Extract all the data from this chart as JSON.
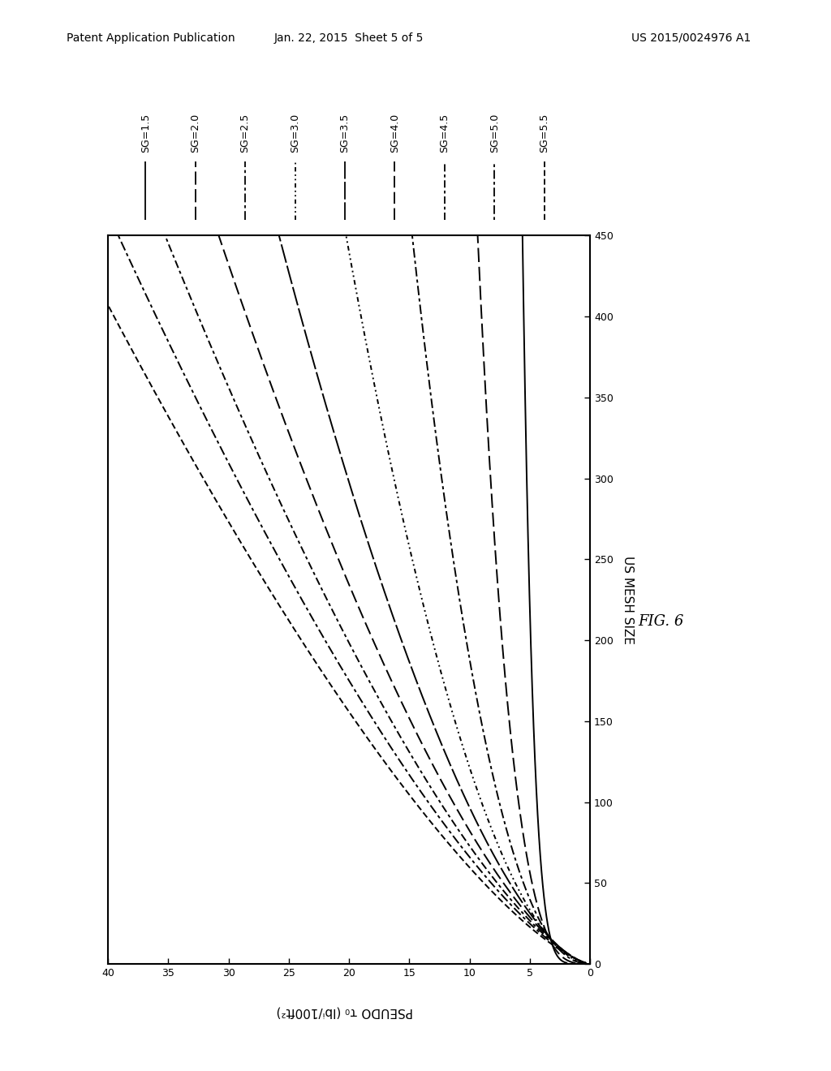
{
  "title_header": "Patent Application Publication",
  "date_header": "Jan. 22, 2015  Sheet 5 of 5",
  "patent_header": "US 2015/0024976 A1",
  "fig_label": "FIG. 6",
  "xlabel": "PSEUDO τ₀ (lbf/100ft²)",
  "ylabel": "US MESH SIZE",
  "x_min": 0,
  "x_max": 40,
  "y_min": 0,
  "y_max": 450,
  "x_ticks": [
    0,
    5,
    10,
    15,
    20,
    25,
    30,
    35,
    40
  ],
  "y_ticks": [
    0,
    50,
    100,
    150,
    200,
    250,
    300,
    350,
    400,
    450
  ],
  "sg_values": [
    1.5,
    2.0,
    2.5,
    3.0,
    3.5,
    4.0,
    4.5,
    5.0,
    5.5
  ],
  "sg_calib": {
    "1.5": [
      3.8,
      5.5
    ],
    "2.0": [
      4.5,
      9.0
    ],
    "2.5": [
      5.0,
      14.0
    ],
    "3.0": [
      5.5,
      19.0
    ],
    "3.5": [
      5.8,
      24.0
    ],
    "4.0": [
      6.2,
      28.5
    ],
    "4.5": [
      6.6,
      32.5
    ],
    "5.0": [
      7.0,
      36.0
    ],
    "5.5": [
      7.5,
      39.5
    ]
  },
  "background_color": "#ffffff",
  "line_color": "#000000",
  "header_fontsize": 10,
  "tick_fontsize": 9,
  "label_fontsize": 11,
  "legend_fontsize": 9
}
